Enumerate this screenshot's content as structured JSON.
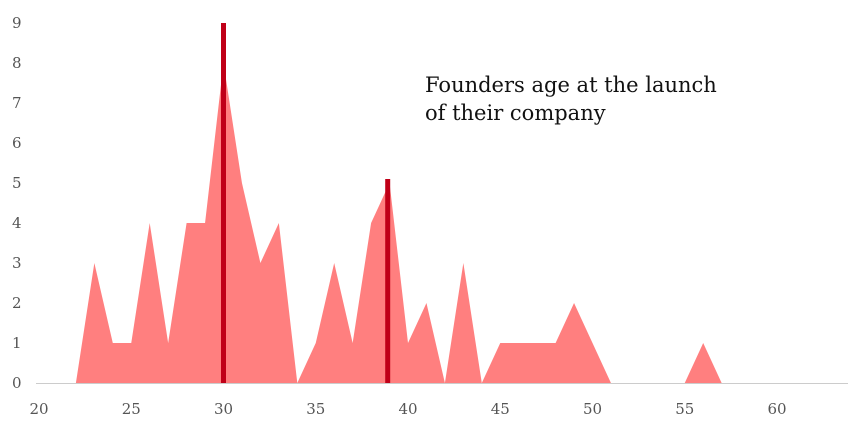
{
  "chart_data": {
    "type": "area",
    "title_lines": [
      "Founders age at the launch",
      "of their company"
    ],
    "xlabel": "",
    "ylabel": "",
    "xlim": [
      20,
      64
    ],
    "ylim": [
      0,
      9
    ],
    "x_ticks": [
      20,
      25,
      30,
      35,
      40,
      45,
      50,
      55,
      60
    ],
    "y_ticks": [
      0,
      1,
      2,
      3,
      4,
      5,
      6,
      7,
      8,
      9
    ],
    "grid": false,
    "colors": {
      "area": "#ff7f7f",
      "marker": "#c00018",
      "axis": "#cccccc",
      "text": "#555555"
    },
    "series": [
      {
        "points": [
          [
            22,
            0
          ],
          [
            23,
            3
          ],
          [
            24,
            1
          ],
          [
            25,
            1
          ],
          [
            26,
            4
          ],
          [
            27,
            1
          ],
          [
            28,
            4
          ],
          [
            29,
            4
          ],
          [
            30,
            8
          ],
          [
            31,
            5
          ],
          [
            32,
            3
          ],
          [
            33,
            4
          ],
          [
            34,
            0
          ],
          [
            35,
            1
          ],
          [
            36,
            3
          ],
          [
            37,
            1
          ],
          [
            38,
            4
          ],
          [
            39,
            5
          ],
          [
            40,
            1
          ],
          [
            41,
            2
          ],
          [
            42,
            0
          ],
          [
            43,
            3
          ],
          [
            44,
            0
          ],
          [
            45,
            1
          ],
          [
            46,
            1
          ],
          [
            47,
            1
          ],
          [
            48,
            1
          ],
          [
            49,
            2
          ],
          [
            50,
            1
          ],
          [
            51,
            0
          ],
          [
            55,
            0
          ],
          [
            56,
            1
          ],
          [
            57,
            0
          ]
        ]
      }
    ],
    "markers": [
      {
        "x": 30,
        "y": 9
      },
      {
        "x": 38.9,
        "y": 5.1
      }
    ]
  }
}
